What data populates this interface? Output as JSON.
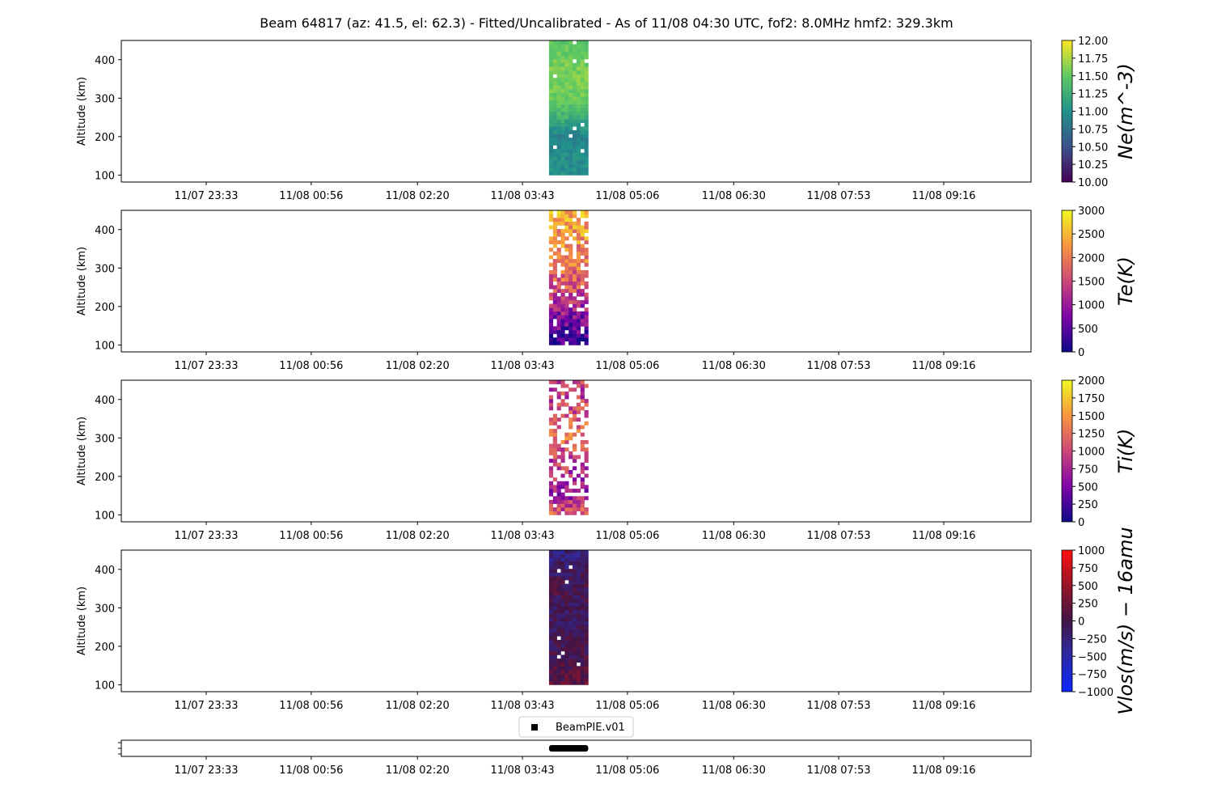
{
  "figure": {
    "title": "Beam 64817 (az: 41.5, el: 62.3) - Fitted/Uncalibrated - As of 11/08 04:30 UTC, fof2: 8.0MHz  hmf2: 329.3km"
  },
  "chart_data": [
    {
      "type": "heatmap",
      "name": "ne-panel",
      "ylabel": "Altitude (km)",
      "ylim": [
        82,
        450
      ],
      "yticks": [
        100,
        200,
        300,
        400
      ],
      "xticks": [
        "11/07 23:33",
        "11/08 00:56",
        "11/08 02:20",
        "11/08 03:43",
        "11/08 05:06",
        "11/08 06:30",
        "11/08 07:53",
        "11/08 09:16"
      ],
      "data_extent": {
        "x_start": "11/08 04:04",
        "x_end": "11/08 04:35",
        "alt_min": 100,
        "alt_max": 450
      },
      "colorbar": {
        "label": "Ne(m^-3)",
        "colormap": "viridis",
        "range": [
          10,
          12
        ],
        "ticks": [
          "10.00",
          "10.25",
          "10.50",
          "10.75",
          "11.00",
          "11.25",
          "11.50",
          "11.75",
          "12.00"
        ]
      },
      "profile": [
        {
          "alt": 100,
          "value": 11.0
        },
        {
          "alt": 150,
          "value": 10.95
        },
        {
          "alt": 200,
          "value": 10.9
        },
        {
          "alt": 250,
          "value": 11.3
        },
        {
          "alt": 300,
          "value": 11.55
        },
        {
          "alt": 350,
          "value": 11.6
        },
        {
          "alt": 400,
          "value": 11.55
        },
        {
          "alt": 450,
          "value": 11.45
        }
      ]
    },
    {
      "type": "heatmap",
      "name": "te-panel",
      "ylabel": "Altitude (km)",
      "ylim": [
        82,
        450
      ],
      "yticks": [
        100,
        200,
        300,
        400
      ],
      "xticks": [
        "11/07 23:33",
        "11/08 00:56",
        "11/08 02:20",
        "11/08 03:43",
        "11/08 05:06",
        "11/08 06:30",
        "11/08 07:53",
        "11/08 09:16"
      ],
      "data_extent": {
        "x_start": "11/08 04:04",
        "x_end": "11/08 04:35",
        "alt_min": 100,
        "alt_max": 450
      },
      "colorbar": {
        "label": "Te(K)",
        "colormap": "plasma",
        "range": [
          0,
          3000
        ],
        "ticks": [
          "0",
          "500",
          "1000",
          "1500",
          "2000",
          "2500",
          "3000"
        ]
      },
      "profile": [
        {
          "alt": 100,
          "value": 350
        },
        {
          "alt": 150,
          "value": 650
        },
        {
          "alt": 200,
          "value": 1200
        },
        {
          "alt": 250,
          "value": 1700
        },
        {
          "alt": 300,
          "value": 1900
        },
        {
          "alt": 350,
          "value": 2100
        },
        {
          "alt": 400,
          "value": 2300
        },
        {
          "alt": 450,
          "value": 2400
        }
      ]
    },
    {
      "type": "heatmap",
      "name": "ti-panel",
      "ylabel": "Altitude (km)",
      "ylim": [
        82,
        450
      ],
      "yticks": [
        100,
        200,
        300,
        400
      ],
      "xticks": [
        "11/07 23:33",
        "11/08 00:56",
        "11/08 02:20",
        "11/08 03:43",
        "11/08 05:06",
        "11/08 06:30",
        "11/08 07:53",
        "11/08 09:16"
      ],
      "data_extent": {
        "x_start": "11/08 04:04",
        "x_end": "11/08 04:35",
        "alt_min": 100,
        "alt_max": 450
      },
      "colorbar": {
        "label": "Ti(K)",
        "colormap": "plasma",
        "range": [
          0,
          2000
        ],
        "ticks": [
          "0",
          "250",
          "500",
          "750",
          "1000",
          "1250",
          "1500",
          "1750",
          "2000"
        ]
      },
      "profile": [
        {
          "alt": 100,
          "value": 1100
        },
        {
          "alt": 150,
          "value": 700
        },
        {
          "alt": 200,
          "value": 800
        },
        {
          "alt": 250,
          "value": 1000
        },
        {
          "alt": 300,
          "value": 1250
        },
        {
          "alt": 350,
          "value": 1050
        },
        {
          "alt": 400,
          "value": 950
        },
        {
          "alt": 450,
          "value": 900
        }
      ]
    },
    {
      "type": "heatmap",
      "name": "vlos-panel",
      "ylabel": "Altitude (km)",
      "ylim": [
        82,
        450
      ],
      "yticks": [
        100,
        200,
        300,
        400
      ],
      "xticks": [
        "11/07 23:33",
        "11/08 00:56",
        "11/08 02:20",
        "11/08 03:43",
        "11/08 05:06",
        "11/08 06:30",
        "11/08 07:53",
        "11/08 09:16"
      ],
      "data_extent": {
        "x_start": "11/08 04:04",
        "x_end": "11/08 04:35",
        "alt_min": 100,
        "alt_max": 450
      },
      "colorbar": {
        "label": "Vlos(m/s) − 16amu",
        "colormap": "bwr-dark",
        "range": [
          -1000,
          1000
        ],
        "ticks": [
          "−1000",
          "−750",
          "−500",
          "−250",
          "0",
          "250",
          "500",
          "750",
          "1000"
        ]
      },
      "profile": [
        {
          "alt": 100,
          "value": 150
        },
        {
          "alt": 150,
          "value": 50
        },
        {
          "alt": 200,
          "value": -50
        },
        {
          "alt": 250,
          "value": -100
        },
        {
          "alt": 300,
          "value": -80
        },
        {
          "alt": 350,
          "value": 0
        },
        {
          "alt": 400,
          "value": -150
        },
        {
          "alt": 450,
          "value": -300
        }
      ]
    },
    {
      "type": "scatter",
      "name": "experiment-panel",
      "legend": [
        "BeamPIE.v01"
      ],
      "legend_position": "top-center",
      "xticks": [
        "11/07 23:33",
        "11/08 00:56",
        "11/08 02:20",
        "11/08 03:43",
        "11/08 05:06",
        "11/08 06:30",
        "11/08 07:53",
        "11/08 09:16"
      ],
      "series": [
        {
          "name": "BeamPIE.v01",
          "x_start": "11/08 04:04",
          "x_end": "11/08 04:35"
        }
      ]
    }
  ]
}
